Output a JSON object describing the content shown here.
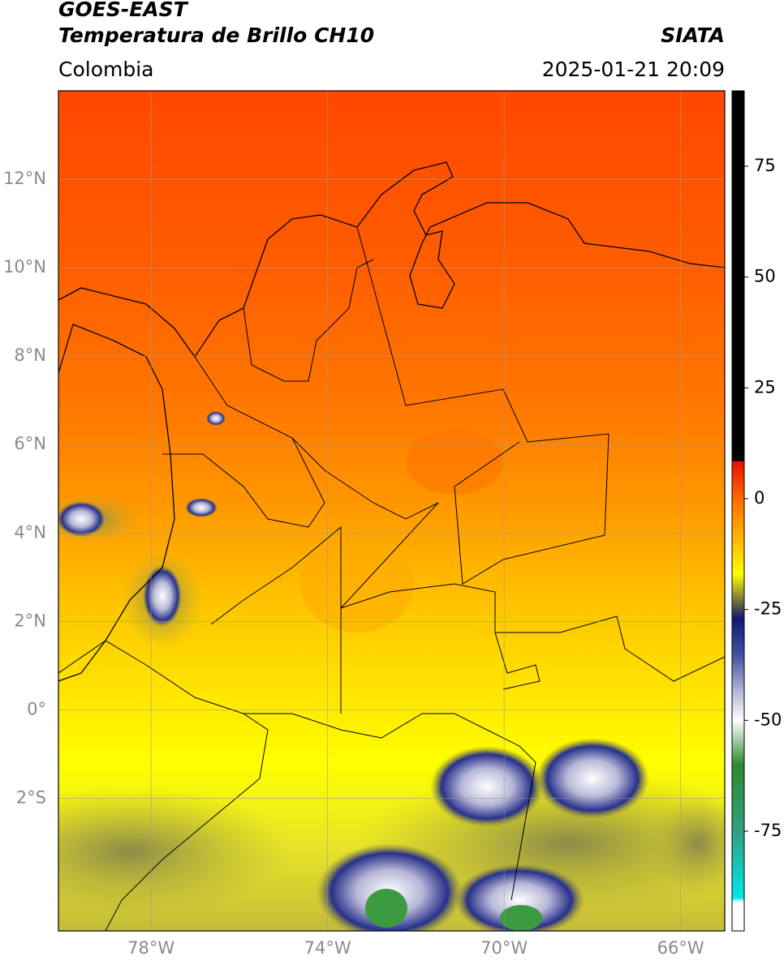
{
  "chart_data": {
    "type": "map",
    "title": "GOES-EAST",
    "subtitle": "Temperatura de Brillo CH10",
    "source": "SIATA",
    "region": "Colombia",
    "datetime": "2025-01-21 20:09",
    "xlim": [
      -80.1,
      -65
    ],
    "ylim": [
      -5,
      14
    ],
    "xticks": [
      {
        "value": -78,
        "label": "78°W"
      },
      {
        "value": -74,
        "label": "74°W"
      },
      {
        "value": -70,
        "label": "70°W"
      },
      {
        "value": -66,
        "label": "66°W"
      }
    ],
    "yticks": [
      {
        "value": 12,
        "label": "12°N"
      },
      {
        "value": 10,
        "label": "10°N"
      },
      {
        "value": 8,
        "label": "8°N"
      },
      {
        "value": 6,
        "label": "6°N"
      },
      {
        "value": 4,
        "label": "4°N"
      },
      {
        "value": 2,
        "label": "2°N"
      },
      {
        "value": 0,
        "label": "0°"
      },
      {
        "value": -2,
        "label": "2°S"
      }
    ],
    "grid": true,
    "colorbar": {
      "clim": [
        -97.5,
        92
      ],
      "ticks": [
        75,
        50,
        25,
        0,
        -25,
        -50,
        -75
      ],
      "stops": [
        {
          "value": 92,
          "color": "#000000"
        },
        {
          "value": 8.5,
          "color": "#000000"
        },
        {
          "value": 8.4,
          "color": "#e81000"
        },
        {
          "value": 0,
          "color": "#ff6a00"
        },
        {
          "value": -12,
          "color": "#ffd000"
        },
        {
          "value": -17,
          "color": "#ffff00"
        },
        {
          "value": -22,
          "color": "#8a8a30"
        },
        {
          "value": -27,
          "color": "#101870"
        },
        {
          "value": -35,
          "color": "#4050a0"
        },
        {
          "value": -45,
          "color": "#c8c8e0"
        },
        {
          "value": -50,
          "color": "#ffffff"
        },
        {
          "value": -60,
          "color": "#2e8a30"
        },
        {
          "value": -75,
          "color": "#30a080"
        },
        {
          "value": -90,
          "color": "#00e8e8"
        },
        {
          "value": -91,
          "color": "#ffffff"
        },
        {
          "value": -97.5,
          "color": "#ffffff"
        }
      ]
    }
  }
}
